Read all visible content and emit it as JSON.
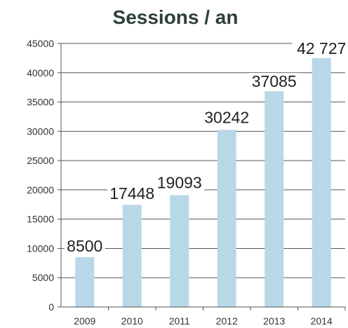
{
  "chart_data": {
    "type": "bar",
    "title": "Sessions / an",
    "xlabel": "",
    "ylabel": "",
    "categories": [
      "2009",
      "2010",
      "2011",
      "2012",
      "2013",
      "2014"
    ],
    "values": [
      8500,
      17448,
      19093,
      30242,
      37085,
      42727
    ],
    "data_labels": [
      "8500",
      "17448",
      "19093",
      "30242",
      "37085",
      "42 727"
    ],
    "ylim": [
      0,
      45000
    ],
    "yticks": [
      0,
      5000,
      10000,
      15000,
      20000,
      25000,
      30000,
      35000,
      40000,
      45000
    ],
    "grid": true,
    "legend": "none",
    "colors": {
      "bar": "#b8d8e8",
      "grid": "#555555",
      "axis": "#555555"
    }
  }
}
